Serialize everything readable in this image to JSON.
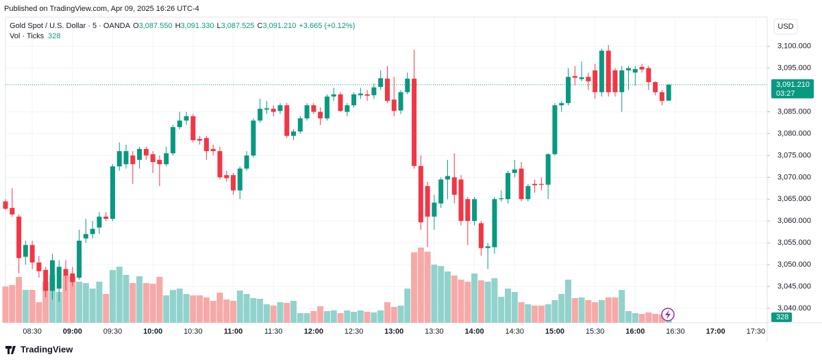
{
  "chart_data": {
    "type": "candlestick",
    "published": "Published on TradingView.com, Apr 09, 2025 16:26 UTC-4",
    "legend": {
      "symbol": "Gold Spot / U.S. Dollar · 5 · OANDA",
      "open_label": "O",
      "open": "3,087.550",
      "high_label": "H",
      "high": "3,091.330",
      "low_label": "L",
      "low": "3,087.525",
      "close_label": "C",
      "close": "3,091.210",
      "change": "+3.665 (+0.12%)",
      "volume_name": "Vol · Ticks",
      "volume": "328",
      "countdown": "03:27"
    },
    "currency": "USD",
    "brand": "TradingView",
    "up_color": "#089981",
    "down_color": "#f23645",
    "volume_up_color": "#92d2cc",
    "volume_down_color": "#f7a9a7",
    "grid": true,
    "ylim": [
      3036.7,
      3106.7
    ],
    "yticks": [
      {
        "value": 3040,
        "label": "3,040.000"
      },
      {
        "value": 3045,
        "label": "3,045.000"
      },
      {
        "value": 3050,
        "label": "3,050.000"
      },
      {
        "value": 3055,
        "label": "3,055.000"
      },
      {
        "value": 3060,
        "label": "3,060.000"
      },
      {
        "value": 3065,
        "label": "3,065.000"
      },
      {
        "value": 3070,
        "label": "3,070.000"
      },
      {
        "value": 3075,
        "label": "3,075.000"
      },
      {
        "value": 3080,
        "label": "3,080.000"
      },
      {
        "value": 3085,
        "label": "3,085.000"
      },
      {
        "value": 3095,
        "label": "3,095.000"
      },
      {
        "value": 3100,
        "label": "3,100.000"
      }
    ],
    "categories": [
      null,
      null,
      null,
      null,
      "08:30",
      null,
      null,
      null,
      null,
      null,
      "09:00",
      null,
      null,
      null,
      null,
      null,
      "09:30",
      null,
      null,
      null,
      null,
      null,
      "10:00",
      null,
      null,
      null,
      null,
      null,
      "10:30",
      null,
      null,
      null,
      null,
      null,
      "11:00",
      null,
      null,
      null,
      null,
      null,
      "11:30",
      null,
      null,
      null,
      null,
      null,
      "12:00",
      null,
      null,
      null,
      null,
      null,
      "12:30",
      null,
      null,
      null,
      null,
      null,
      "13:00",
      null,
      null,
      null,
      null,
      null,
      "13:30",
      null,
      null,
      null,
      null,
      null,
      "14:00",
      null,
      null,
      null,
      null,
      null,
      "14:30",
      null,
      null,
      null,
      null,
      null,
      "15:00",
      null,
      null,
      null,
      null,
      null,
      "15:30",
      null,
      null,
      null,
      null,
      null,
      "16:00",
      null,
      null,
      null,
      null,
      null,
      "16:30",
      null,
      null,
      null,
      null,
      null,
      "17:00",
      null,
      null,
      null,
      null,
      null,
      "17:30",
      null
    ],
    "open": [
      3064.5,
      3063,
      3061,
      3051.8,
      3054.5,
      3050.5,
      3048.8,
      3044,
      3044.5,
      3049,
      3048,
      3047,
      3056,
      3057,
      3058.5,
      3061,
      3060.5,
      3072.5,
      3073,
      3075,
      3074,
      3076.5,
      3075.3,
      3074,
      3073,
      3075.5,
      3081.5,
      3083,
      3084,
      3078.8,
      3079,
      3076.5,
      3076,
      3070.5,
      3070.5,
      3067,
      3072,
      3075,
      3083,
      3085.5,
      3085.7,
      3085.2,
      3086.5,
      3079.5,
      3080.5,
      3083.5,
      3086.5,
      3085,
      3083.5,
      3088.5,
      3089,
      3085,
      3086.5,
      3088.8,
      3089,
      3088.8,
      3090.7,
      3092.6,
      3087.8,
      3085.3,
      3089.5,
      3092.6,
      3072.6,
      3068,
      3061,
      3064,
      3069.5,
      3070,
      3069.5,
      3065,
      3060,
      3059.5,
      3053.8,
      3054,
      3065,
      3065,
      3071,
      3072,
      3065,
      3068.5,
      3068.5,
      3068.3,
      3075.3,
      3086.5,
      3087,
      3093.2,
      3092.5,
      3093,
      3094.5,
      3089.5,
      3099,
      3094.5,
      3089.5,
      3094.5,
      3094,
      3095.3,
      3095,
      3091.8,
      3089.5,
      3087.55,
      null,
      null,
      null,
      null,
      null,
      null,
      null,
      null,
      null,
      null,
      null,
      null,
      null,
      null
    ],
    "high": [
      3065,
      3067.5,
      3061.5,
      3055.5,
      3055.5,
      3052,
      3049.5,
      3052.5,
      3051,
      3051,
      3049.5,
      3058,
      3060.5,
      3060,
      3062,
      3062,
      3073,
      3078,
      3077.5,
      3076,
      3077,
      3077,
      3076,
      3075,
      3077,
      3082,
      3085,
      3085,
      3084.5,
      3079.5,
      3079.5,
      3077.5,
      3077,
      3071.5,
      3071,
      3072.5,
      3076,
      3083.5,
      3088,
      3087.5,
      3086.5,
      3087,
      3087,
      3081,
      3084,
      3087,
      3087,
      3086,
      3089,
      3090.5,
      3089.5,
      3087,
      3089.5,
      3090.5,
      3090,
      3091.5,
      3094.5,
      3095.5,
      3093,
      3090,
      3094,
      3099.2,
      3075,
      3069,
      3066,
      3070,
      3074,
      3075.5,
      3070.5,
      3065.5,
      3065.5,
      3060,
      3055,
      3065.5,
      3067,
      3071.5,
      3074,
      3073.5,
      3068.5,
      3069.5,
      3070,
      3075.5,
      3087,
      3087.5,
      3095,
      3095.5,
      3096.5,
      3094,
      3096,
      3099.5,
      3100.3,
      3095,
      3095.5,
      3095.5,
      3095.5,
      3096,
      3095.5,
      3092,
      3090,
      3091.33,
      null,
      null,
      null,
      null,
      null,
      null,
      null,
      null,
      null,
      null,
      null,
      null,
      null,
      null
    ],
    "low": [
      3062.5,
      3061,
      3048,
      3050,
      3049,
      3047,
      3042.5,
      3042,
      3041.5,
      3044,
      3045,
      3046.5,
      3055,
      3056,
      3057,
      3060,
      3060,
      3071.5,
      3072,
      3068.5,
      3072,
      3074,
      3071,
      3068,
      3072.5,
      3075,
      3081,
      3082,
      3078,
      3077.5,
      3074,
      3075,
      3069.5,
      3069,
      3066,
      3065,
      3071.5,
      3074.5,
      3082.5,
      3084.5,
      3084,
      3084.5,
      3079,
      3078.5,
      3080,
      3083,
      3084.5,
      3082,
      3083,
      3087.5,
      3085,
      3084,
      3086,
      3088,
      3087.5,
      3088,
      3090,
      3087,
      3084,
      3084.5,
      3089,
      3072,
      3058,
      3054,
      3058,
      3063,
      3065,
      3064,
      3059,
      3054.5,
      3059,
      3052,
      3049,
      3052.5,
      3064.5,
      3064,
      3070,
      3064.5,
      3064.5,
      3066.5,
      3067,
      3065,
      3075,
      3085,
      3086.5,
      3091,
      3092,
      3090,
      3088,
      3088.5,
      3088.5,
      3088.5,
      3085,
      3090,
      3091,
      3094,
      3090,
      3088.8,
      3086.5,
      3087.525,
      null,
      null,
      null,
      null,
      null,
      null,
      null,
      null,
      null,
      null,
      null,
      null,
      null,
      null
    ],
    "close": [
      3062.8,
      3061.5,
      3051.5,
      3054.5,
      3050.5,
      3048.5,
      3044,
      3051,
      3049.5,
      3047.5,
      3046,
      3055.5,
      3057,
      3058.2,
      3061,
      3060.5,
      3072.5,
      3076,
      3076,
      3073,
      3076.5,
      3075,
      3073.5,
      3073,
      3075.5,
      3081.5,
      3083,
      3084,
      3078.5,
      3078.4,
      3076,
      3076,
      3070,
      3069.8,
      3067,
      3072,
      3075,
      3083,
      3085.7,
      3085.8,
      3085,
      3086.5,
      3079.5,
      3080.5,
      3083.5,
      3086.5,
      3085,
      3083.5,
      3088.5,
      3089,
      3085.2,
      3086.5,
      3089,
      3089.2,
      3088.7,
      3090.6,
      3092.7,
      3087.5,
      3085.2,
      3089.5,
      3092.6,
      3072.6,
      3059.7,
      3061,
      3064.2,
      3069.5,
      3070.3,
      3066,
      3060,
      3060,
      3065,
      3053.8,
      3054.2,
      3065,
      3065.2,
      3071,
      3071.8,
      3065,
      3068,
      3068.2,
      3068.3,
      3075.3,
      3086.5,
      3087,
      3093,
      3092.8,
      3092.9,
      3092,
      3089.5,
      3099,
      3089.5,
      3089.5,
      3094.5,
      3095,
      3094.8,
      3094.7,
      3091.8,
      3089.5,
      3087.5,
      3091.21,
      null,
      null,
      null,
      null,
      null,
      null,
      null,
      null,
      null,
      null,
      null,
      null,
      null,
      null
    ],
    "volume": [
      1447,
      1502,
      1829,
      1310,
      1310,
      819,
      1638,
      1911,
      1229,
      1911,
      1856,
      1638,
      1583,
      1365,
      1638,
      1147,
      2102,
      2239,
      1911,
      1583,
      1856,
      1583,
      1556,
      1829,
      1092,
      1310,
      1365,
      1147,
      1092,
      1092,
      1010,
      874,
      1201,
      928,
      874,
      1283,
      1147,
      983,
      956,
      737,
      683,
      819,
      792,
      874,
      382,
      382,
      464,
      655,
      464,
      491,
      382,
      491,
      437,
      491,
      437,
      410,
      491,
      819,
      628,
      683,
      1365,
      2812,
      3003,
      2839,
      2321,
      2266,
      2048,
      1884,
      1720,
      1638,
      1966,
      1693,
      1638,
      1775,
      1037,
      1365,
      1229,
      819,
      737,
      683,
      683,
      737,
      901,
      1147,
      1720,
      983,
      1010,
      901,
      819,
      901,
      1010,
      1010,
      1310,
      464,
      382,
      350,
      410,
      355,
      328,
      328,
      null,
      null,
      null,
      null,
      null,
      null,
      null,
      null,
      null,
      null,
      null,
      null,
      null,
      null
    ]
  }
}
